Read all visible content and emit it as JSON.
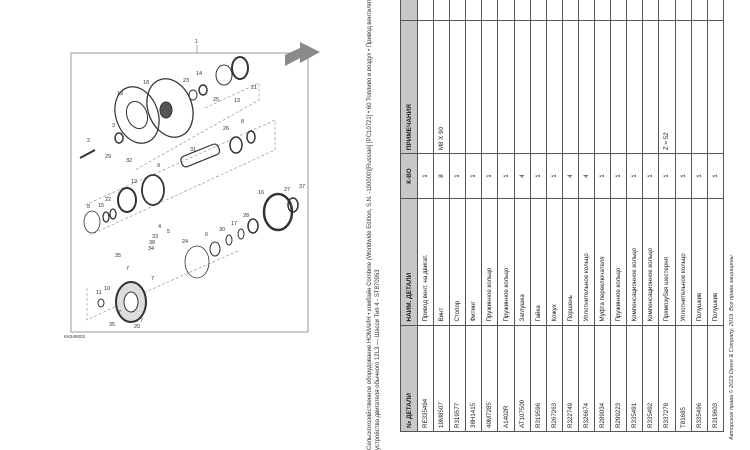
{
  "header": {
    "line1": "Сельскохозяйственное оборудование НОМАЙН • комбайн Combine (Worldwide Edition, S.N. -190000)[Russian] [PC10721] • 60 Топливо и воздух • Привод вентилятора",
    "line2": "устройства двигателя обычного 12L3 — Шасси Тип 4 - ST870953"
  },
  "table": {
    "headers": {
      "part_no": "№ ДЕТАЛИ",
      "name": "НАИМ. ДЕТАЛИ",
      "qty": "К-ВО",
      "notes": "ПРИМЕЧАНИЯ"
    },
    "rows": [
      {
        "part_no": "RE335494",
        "name": "Привод вент. на двигат.",
        "qty": "1",
        "notes": ""
      },
      {
        "part_no": "19M8507",
        "name": "Винт",
        "qty": "8",
        "notes": "M8 X 90"
      },
      {
        "part_no": "R319577",
        "name": "Стопор",
        "qty": "1",
        "notes": ""
      },
      {
        "part_no": "38H1415",
        "name": "Фитинг",
        "qty": "1",
        "notes": ""
      },
      {
        "part_no": "40M7285",
        "name": "Пружинное кольцо",
        "qty": "1",
        "notes": ""
      },
      {
        "part_no": "A1402R",
        "name": "Пружинное кольцо",
        "qty": "1",
        "notes": ""
      },
      {
        "part_no": "AT107509",
        "name": "Заглушка",
        "qty": "4",
        "notes": ""
      },
      {
        "part_no": "R319596",
        "name": "Гайка",
        "qty": "1",
        "notes": ""
      },
      {
        "part_no": "R267263",
        "name": "Кожух",
        "qty": "1",
        "notes": ""
      },
      {
        "part_no": "R322749",
        "name": "Поршень",
        "qty": "4",
        "notes": ""
      },
      {
        "part_no": "R326674",
        "name": "Уплотнительное кольцо",
        "qty": "4",
        "notes": ""
      },
      {
        "part_no": "R289034",
        "name": "Муфта переключателя",
        "qty": "1",
        "notes": ""
      },
      {
        "part_no": "R299223",
        "name": "Пружинное кольцо",
        "qty": "1",
        "notes": ""
      },
      {
        "part_no": "R335491",
        "name": "Компенсационное кольцо",
        "qty": "1",
        "notes": ""
      },
      {
        "part_no": "R335492",
        "name": "Компенсационное кольцо",
        "qty": "1",
        "notes": ""
      },
      {
        "part_no": "R337278",
        "name": "Прямозубая шестерня",
        "qty": "1",
        "notes": "Z = 52"
      },
      {
        "part_no": "T81685",
        "name": "Уплотнительное кольцо",
        "qty": "1",
        "notes": ""
      },
      {
        "part_no": "R335496",
        "name": "Полушкив",
        "qty": "1",
        "notes": ""
      },
      {
        "part_no": "R319603",
        "name": "Полушкив",
        "qty": "1",
        "notes": ""
      }
    ]
  },
  "footer": {
    "copyright": "Авторские права © 2019 Deere & Company, 2019. Все права защищены."
  },
  "diagram": {
    "image_code": "KK549002",
    "arrow_color": "#8a8a8a",
    "callouts": [
      "1",
      "18",
      "23",
      "14",
      "21",
      "13",
      "25",
      "19",
      "3",
      "2",
      "29",
      "32",
      "26",
      "8",
      "31",
      "9",
      "12",
      "8",
      "15",
      "22",
      "16",
      "27",
      "37",
      "28",
      "17",
      "30",
      "6",
      "24",
      "4",
      "5",
      "33",
      "38",
      "34",
      "35",
      "7",
      "7",
      "11",
      "10",
      "7",
      "7",
      "35",
      "20"
    ]
  }
}
